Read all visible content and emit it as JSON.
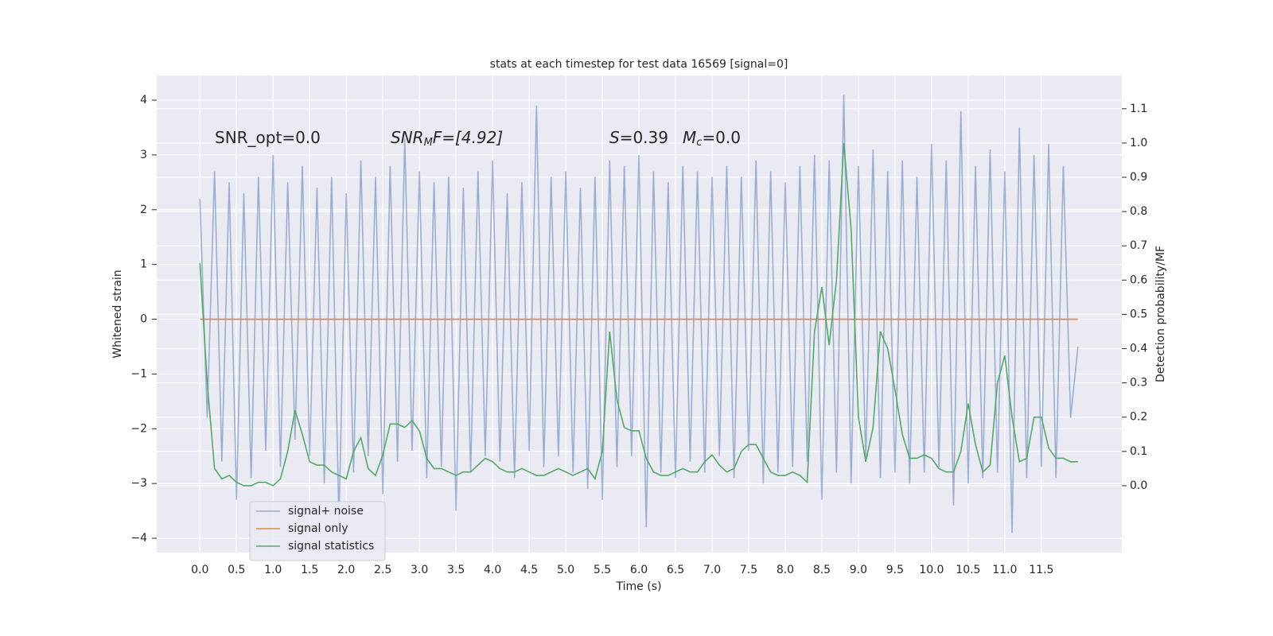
{
  "chart_data": {
    "type": "line",
    "title": "stats at each timestep for test data 16569 [signal=0]",
    "xlabel": "Time (s)",
    "ylabel": "Whitened strain",
    "y2label": "Detection probability/MF",
    "annotations": [
      {
        "parts": [
          "SNR_opt=0.0"
        ]
      },
      {
        "parts": [
          "SNR",
          "M",
          "F=[4.92]"
        ]
      },
      {
        "parts": [
          "S",
          "=0.39"
        ]
      },
      {
        "parts": [
          "M",
          "c",
          "=0.0"
        ]
      }
    ],
    "x": [
      0,
      0.1,
      0.2,
      0.3,
      0.4,
      0.5,
      0.6,
      0.7,
      0.8,
      0.9,
      1,
      1.1,
      1.2,
      1.3,
      1.4,
      1.5,
      1.6,
      1.7,
      1.8,
      1.9,
      2,
      2.1,
      2.2,
      2.3,
      2.4,
      2.5,
      2.6,
      2.7,
      2.8,
      2.9,
      3,
      3.1,
      3.2,
      3.3,
      3.4,
      3.5,
      3.6,
      3.7,
      3.8,
      3.9,
      4,
      4.1,
      4.2,
      4.3,
      4.4,
      4.5,
      4.6,
      4.7,
      4.8,
      4.9,
      5,
      5.1,
      5.2,
      5.3,
      5.4,
      5.5,
      5.6,
      5.7,
      5.8,
      5.9,
      6,
      6.1,
      6.2,
      6.3,
      6.4,
      6.5,
      6.6,
      6.7,
      6.8,
      6.9,
      7,
      7.1,
      7.2,
      7.3,
      7.4,
      7.5,
      7.6,
      7.7,
      7.8,
      7.9,
      8,
      8.1,
      8.2,
      8.3,
      8.4,
      8.5,
      8.6,
      8.7,
      8.8,
      8.9,
      9,
      9.1,
      9.2,
      9.3,
      9.4,
      9.5,
      9.6,
      9.7,
      9.8,
      9.9,
      10,
      10.1,
      10.2,
      10.3,
      10.4,
      10.5,
      10.6,
      10.7,
      10.8,
      10.9,
      11,
      11.1,
      11.2,
      11.3,
      11.4,
      11.5,
      11.6,
      11.7,
      11.8,
      11.9,
      12
    ],
    "series": [
      {
        "name": "signal+ noise",
        "color": "#4c72b0",
        "opacity": 0.5,
        "values": [
          2.2,
          -1.8,
          2.7,
          -2.6,
          2.5,
          -3.3,
          2.3,
          -2.9,
          2.6,
          -2.4,
          3.0,
          -2.7,
          2.5,
          -2.2,
          2.8,
          -2.5,
          2.4,
          -3.0,
          2.6,
          -3.7,
          2.3,
          -2.8,
          2.9,
          -2.5,
          2.6,
          -3.2,
          2.8,
          -2.6,
          3.3,
          -2.4,
          2.7,
          -2.9,
          2.5,
          -2.7,
          2.6,
          -3.5,
          2.4,
          -2.8,
          2.7,
          -2.5,
          2.9,
          -2.6,
          2.3,
          -2.9,
          2.5,
          -2.4,
          3.9,
          -2.7,
          2.6,
          -2.5,
          2.7,
          -2.8,
          2.4,
          -3.1,
          2.6,
          -3.3,
          2.9,
          -2.7,
          2.8,
          -2.5,
          3.0,
          -3.8,
          2.7,
          -2.8,
          2.5,
          -2.9,
          2.8,
          -2.6,
          2.7,
          -2.8,
          2.6,
          -2.5,
          2.8,
          -2.9,
          2.6,
          -2.4,
          2.9,
          -3.0,
          2.7,
          -2.8,
          2.5,
          -2.7,
          2.8,
          -2.6,
          3.0,
          -3.3,
          2.9,
          -2.8,
          4.1,
          -3.0,
          2.8,
          -2.6,
          3.1,
          -2.9,
          2.7,
          -2.8,
          2.9,
          -3.0,
          2.6,
          -2.8,
          3.2,
          -2.7,
          2.9,
          -3.4,
          3.8,
          -3.0,
          2.8,
          -2.9,
          3.1,
          -2.8,
          2.7,
          -3.9,
          3.5,
          -2.9,
          3.0,
          -2.7,
          3.2,
          -2.9,
          2.8,
          -1.8,
          -0.5
        ]
      },
      {
        "name": "signal only",
        "color": "#dd8452",
        "values": [
          0,
          0,
          0,
          0,
          0,
          0,
          0,
          0,
          0,
          0,
          0,
          0,
          0,
          0,
          0,
          0,
          0,
          0,
          0,
          0,
          0,
          0,
          0,
          0,
          0,
          0,
          0,
          0,
          0,
          0,
          0,
          0,
          0,
          0,
          0,
          0,
          0,
          0,
          0,
          0,
          0,
          0,
          0,
          0,
          0,
          0,
          0,
          0,
          0,
          0,
          0,
          0,
          0,
          0,
          0,
          0,
          0,
          0,
          0,
          0,
          0,
          0,
          0,
          0,
          0,
          0,
          0,
          0,
          0,
          0,
          0,
          0,
          0,
          0,
          0,
          0,
          0,
          0,
          0,
          0,
          0,
          0,
          0,
          0,
          0,
          0,
          0,
          0,
          0,
          0,
          0,
          0,
          0,
          0,
          0,
          0,
          0,
          0,
          0,
          0,
          0,
          0,
          0,
          0,
          0,
          0,
          0,
          0,
          0,
          0,
          0,
          0,
          0,
          0,
          0,
          0,
          0,
          0,
          0,
          0,
          0
        ]
      },
      {
        "name": "signal statistics",
        "color": "#55a868",
        "axis": "y2",
        "values": [
          0.65,
          0.3,
          0.05,
          0.02,
          0.03,
          0.01,
          0.0,
          0.0,
          0.01,
          0.01,
          0.0,
          0.02,
          0.1,
          0.22,
          0.15,
          0.07,
          0.06,
          0.06,
          0.04,
          0.03,
          0.02,
          0.1,
          0.14,
          0.05,
          0.03,
          0.09,
          0.18,
          0.18,
          0.17,
          0.19,
          0.16,
          0.08,
          0.05,
          0.05,
          0.04,
          0.03,
          0.04,
          0.04,
          0.06,
          0.08,
          0.07,
          0.05,
          0.04,
          0.04,
          0.05,
          0.04,
          0.03,
          0.03,
          0.04,
          0.05,
          0.04,
          0.03,
          0.04,
          0.05,
          0.02,
          0.1,
          0.45,
          0.25,
          0.17,
          0.16,
          0.16,
          0.08,
          0.04,
          0.03,
          0.03,
          0.04,
          0.05,
          0.04,
          0.04,
          0.07,
          0.09,
          0.06,
          0.04,
          0.05,
          0.1,
          0.12,
          0.12,
          0.08,
          0.04,
          0.03,
          0.03,
          0.04,
          0.03,
          0.01,
          0.45,
          0.58,
          0.41,
          0.6,
          1.0,
          0.75,
          0.2,
          0.07,
          0.17,
          0.45,
          0.4,
          0.28,
          0.15,
          0.08,
          0.08,
          0.09,
          0.08,
          0.05,
          0.04,
          0.04,
          0.1,
          0.24,
          0.12,
          0.04,
          0.06,
          0.3,
          0.38,
          0.2,
          0.07,
          0.08,
          0.2,
          0.2,
          0.11,
          0.08,
          0.08,
          0.07,
          0.07
        ]
      }
    ],
    "xlim": [
      -0.59,
      12.6
    ],
    "ylim": [
      -4.26,
      4.45
    ],
    "y2lim": [
      -0.195,
      1.197
    ],
    "xticks": [
      {
        "value": 0,
        "label": "0.0"
      },
      {
        "value": 0.5,
        "label": "0.5"
      },
      {
        "value": 1,
        "label": "1.0"
      },
      {
        "value": 1.5,
        "label": "1.5"
      },
      {
        "value": 2,
        "label": "2.0"
      },
      {
        "value": 2.5,
        "label": "2.5"
      },
      {
        "value": 3,
        "label": "3.0"
      },
      {
        "value": 3.5,
        "label": "3.5"
      },
      {
        "value": 4,
        "label": "4.0"
      },
      {
        "value": 4.5,
        "label": "4.5"
      },
      {
        "value": 5,
        "label": "5.0"
      },
      {
        "value": 5.5,
        "label": "5.5"
      },
      {
        "value": 6,
        "label": "6.0"
      },
      {
        "value": 6.5,
        "label": "6.5"
      },
      {
        "value": 7,
        "label": "7.0"
      },
      {
        "value": 7.5,
        "label": "7.5"
      },
      {
        "value": 8,
        "label": "8.0"
      },
      {
        "value": 8.5,
        "label": "8.5"
      },
      {
        "value": 9,
        "label": "9.0"
      },
      {
        "value": 9.5,
        "label": "9.5"
      },
      {
        "value": 10,
        "label": "10.0"
      },
      {
        "value": 10.5,
        "label": "10.5"
      },
      {
        "value": 11,
        "label": "11.0"
      },
      {
        "value": 11.5,
        "label": "11.5"
      }
    ],
    "yticks": [
      {
        "value": -4,
        "label": "−4"
      },
      {
        "value": -3,
        "label": "−3"
      },
      {
        "value": -2,
        "label": "−2"
      },
      {
        "value": -1,
        "label": "−1"
      },
      0,
      1,
      2,
      3,
      4
    ],
    "y2ticks": [
      {
        "value": 0,
        "label": "0.0"
      },
      0.1,
      0.2,
      0.3,
      0.4,
      0.5,
      0.6,
      0.7,
      0.8,
      0.9,
      {
        "value": 1,
        "label": "1.0"
      },
      1.1
    ],
    "grid": true,
    "legend": "lower left"
  }
}
